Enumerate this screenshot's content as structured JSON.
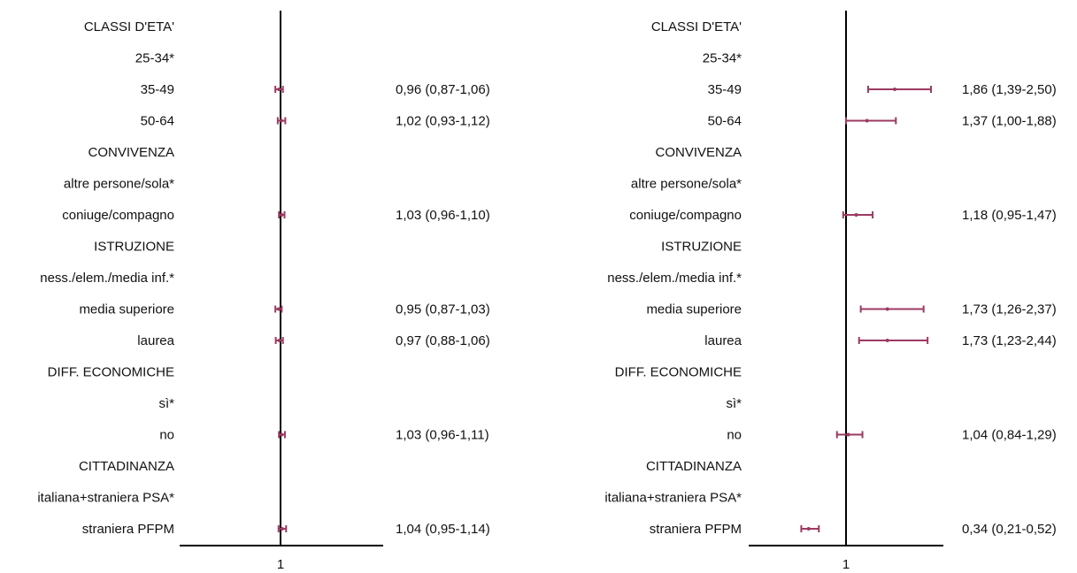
{
  "colors": {
    "marker": "#9c3a62",
    "axis": "#000000",
    "text": "#111111"
  },
  "chart_data": [
    {
      "type": "forest",
      "title": "",
      "xlabel": "",
      "reference_line": 1,
      "xtick_label": "1",
      "xlim": [
        0.8,
        1.2
      ],
      "rows": [
        {
          "label": "CLASSI D'ETA'",
          "estimate": null,
          "low": null,
          "high": null,
          "text": ""
        },
        {
          "label": "25-34*",
          "estimate": null,
          "low": null,
          "high": null,
          "text": ""
        },
        {
          "label": "35-49",
          "estimate": 0.96,
          "low": 0.87,
          "high": 1.06,
          "text": "0,96 (0,87-1,06)"
        },
        {
          "label": "50-64",
          "estimate": 1.02,
          "low": 0.93,
          "high": 1.12,
          "text": "1,02 (0,93-1,12)"
        },
        {
          "label": "CONVIVENZA",
          "estimate": null,
          "low": null,
          "high": null,
          "text": ""
        },
        {
          "label": "altre persone/sola*",
          "estimate": null,
          "low": null,
          "high": null,
          "text": ""
        },
        {
          "label": "coniuge/compagno",
          "estimate": 1.03,
          "low": 0.96,
          "high": 1.1,
          "text": "1,03 (0,96-1,10)"
        },
        {
          "label": "ISTRUZIONE",
          "estimate": null,
          "low": null,
          "high": null,
          "text": ""
        },
        {
          "label": "ness./elem./media inf.*",
          "estimate": null,
          "low": null,
          "high": null,
          "text": ""
        },
        {
          "label": "media superiore",
          "estimate": 0.95,
          "low": 0.87,
          "high": 1.03,
          "text": "0,95 (0,87-1,03)"
        },
        {
          "label": "laurea",
          "estimate": 0.97,
          "low": 0.88,
          "high": 1.06,
          "text": "0,97 (0,88-1,06)"
        },
        {
          "label": "DIFF. ECONOMICHE",
          "estimate": null,
          "low": null,
          "high": null,
          "text": ""
        },
        {
          "label": "sì*",
          "estimate": null,
          "low": null,
          "high": null,
          "text": ""
        },
        {
          "label": "no",
          "estimate": 1.03,
          "low": 0.96,
          "high": 1.11,
          "text": "1,03 (0,96-1,11)"
        },
        {
          "label": "CITTADINANZA",
          "estimate": null,
          "low": null,
          "high": null,
          "text": ""
        },
        {
          "label": "italiana+straniera PSA*",
          "estimate": null,
          "low": null,
          "high": null,
          "text": ""
        },
        {
          "label": "straniera PFPM",
          "estimate": 1.04,
          "low": 0.95,
          "high": 1.14,
          "text": "1,04 (0,95-1,14)"
        }
      ]
    },
    {
      "type": "forest",
      "title": "",
      "xlabel": "",
      "reference_line": 1,
      "xtick_label": "1",
      "xlim": [
        0.2,
        2.7
      ],
      "rows": [
        {
          "label": "CLASSI D'ETA'",
          "estimate": null,
          "low": null,
          "high": null,
          "text": ""
        },
        {
          "label": "25-34*",
          "estimate": null,
          "low": null,
          "high": null,
          "text": ""
        },
        {
          "label": "35-49",
          "estimate": 1.86,
          "low": 1.39,
          "high": 2.5,
          "text": "1,86 (1,39-2,50)"
        },
        {
          "label": "50-64",
          "estimate": 1.37,
          "low": 1.0,
          "high": 1.88,
          "text": "1,37 (1,00-1,88)"
        },
        {
          "label": "CONVIVENZA",
          "estimate": null,
          "low": null,
          "high": null,
          "text": ""
        },
        {
          "label": "altre persone/sola*",
          "estimate": null,
          "low": null,
          "high": null,
          "text": ""
        },
        {
          "label": "coniuge/compagno",
          "estimate": 1.18,
          "low": 0.95,
          "high": 1.47,
          "text": "1,18 (0,95-1,47)"
        },
        {
          "label": "ISTRUZIONE",
          "estimate": null,
          "low": null,
          "high": null,
          "text": ""
        },
        {
          "label": "ness./elem./media inf.*",
          "estimate": null,
          "low": null,
          "high": null,
          "text": ""
        },
        {
          "label": "media superiore",
          "estimate": 1.73,
          "low": 1.26,
          "high": 2.37,
          "text": "1,73 (1,26-2,37)"
        },
        {
          "label": "laurea",
          "estimate": 1.73,
          "low": 1.23,
          "high": 2.44,
          "text": "1,73 (1,23-2,44)"
        },
        {
          "label": "DIFF. ECONOMICHE",
          "estimate": null,
          "low": null,
          "high": null,
          "text": ""
        },
        {
          "label": "sì*",
          "estimate": null,
          "low": null,
          "high": null,
          "text": ""
        },
        {
          "label": "no",
          "estimate": 1.04,
          "low": 0.84,
          "high": 1.29,
          "text": "1,04 (0,84-1,29)"
        },
        {
          "label": "CITTADINANZA",
          "estimate": null,
          "low": null,
          "high": null,
          "text": ""
        },
        {
          "label": "italiana+straniera PSA*",
          "estimate": null,
          "low": null,
          "high": null,
          "text": ""
        },
        {
          "label": "straniera PFPM",
          "estimate": 0.34,
          "low": 0.21,
          "high": 0.52,
          "text": "0,34 (0,21-0,52)"
        }
      ]
    }
  ]
}
